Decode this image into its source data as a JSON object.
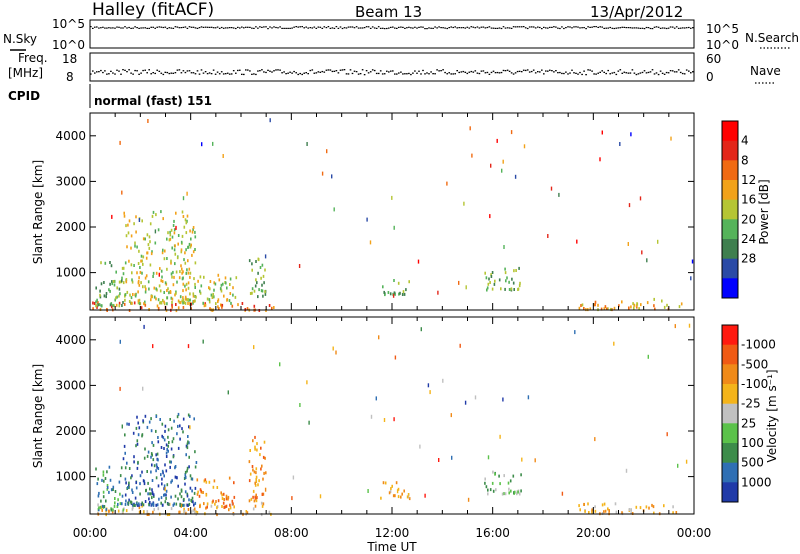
{
  "header": {
    "station": "Halley (fitACF)",
    "beam": "Beam 13",
    "date": "13/Apr/2012"
  },
  "panels": {
    "nsky": {
      "label": "N.Sky",
      "ticks": [
        "10^5",
        "10^0"
      ]
    },
    "nsearch": {
      "label": "N.Search",
      "ticks": [
        "10^5",
        "10^0"
      ]
    },
    "freq": {
      "label_line1": "Freq.",
      "label_line2": "[MHz]",
      "ticks": [
        "18",
        "8"
      ]
    },
    "nave": {
      "label": "Nave",
      "ticks": [
        "60",
        "0"
      ]
    },
    "cpid": {
      "label": "CPID",
      "value": "normal (fast) 151"
    }
  },
  "chart_data": [
    {
      "type": "heatmap",
      "name": "power",
      "ylabel": "Slant Range [km]",
      "xlabel": "",
      "ylim": [
        180,
        4500
      ],
      "yticks": [
        1000,
        2000,
        3000,
        4000
      ],
      "xticks": [
        "00:00",
        "04:00",
        "08:00",
        "12:00",
        "16:00",
        "20:00",
        "00:00"
      ],
      "xlim_hours": [
        0,
        24
      ],
      "colorbar": {
        "label": "Power [dB]",
        "tick_labels": [
          "4",
          "8",
          "12",
          "16",
          "20",
          "24",
          "28"
        ],
        "colors": [
          "#0000ff",
          "#2a4aa6",
          "#3f7f4f",
          "#55b35a",
          "#b5c534",
          "#f2a21a",
          "#f06a12",
          "#e3261a",
          "#ff0000"
        ]
      },
      "echo_regions": [
        {
          "t0": 0.0,
          "t1": 7.3,
          "r0": 200,
          "r1": 380,
          "level": 6
        },
        {
          "t0": 0.2,
          "t1": 1.3,
          "r0": 300,
          "r1": 1300,
          "level": 3
        },
        {
          "t0": 1.3,
          "t1": 4.2,
          "r0": 350,
          "r1": 2400,
          "level": 4
        },
        {
          "t0": 4.2,
          "t1": 5.8,
          "r0": 350,
          "r1": 1000,
          "level": 4
        },
        {
          "t0": 6.3,
          "t1": 7.0,
          "r0": 500,
          "r1": 1400,
          "level": 3
        },
        {
          "t0": 11.5,
          "t1": 12.7,
          "r0": 550,
          "r1": 900,
          "level": 3
        },
        {
          "t0": 15.6,
          "t1": 17.1,
          "r0": 650,
          "r1": 1150,
          "level": 3
        },
        {
          "t0": 19.4,
          "t1": 23.5,
          "r0": 220,
          "r1": 450,
          "level": 5
        }
      ]
    },
    {
      "type": "heatmap",
      "name": "velocity",
      "ylabel": "Slant Range [km]",
      "xlabel": "Time UT",
      "ylim": [
        180,
        4500
      ],
      "yticks": [
        1000,
        2000,
        3000,
        4000
      ],
      "xticks": [
        "00:00",
        "04:00",
        "08:00",
        "12:00",
        "16:00",
        "20:00",
        "00:00"
      ],
      "xlim_hours": [
        0,
        24
      ],
      "colorbar": {
        "label": "Velocity [m s⁻¹]",
        "tick_labels": [
          "1000",
          "500",
          "100",
          "25",
          "-25",
          "-100",
          "-500",
          "-1000"
        ],
        "colors": [
          "#203aa8",
          "#2f6fb3",
          "#3c8c4a",
          "#5bc24a",
          "#c0c0c0",
          "#f4b41a",
          "#f08a18",
          "#f05a14",
          "#ff1a10"
        ]
      },
      "echo_regions": [
        {
          "t0": 0.0,
          "t1": 7.3,
          "r0": 200,
          "r1": 450,
          "level": 5
        },
        {
          "t0": 0.2,
          "t1": 1.3,
          "r0": 300,
          "r1": 1300,
          "level": 2
        },
        {
          "t0": 1.3,
          "t1": 4.2,
          "r0": 400,
          "r1": 2400,
          "level": 1
        },
        {
          "t0": 4.2,
          "t1": 5.8,
          "r0": 350,
          "r1": 1000,
          "level": 6
        },
        {
          "t0": 6.3,
          "t1": 7.0,
          "r0": 500,
          "r1": 1900,
          "level": 6
        },
        {
          "t0": 11.5,
          "t1": 12.7,
          "r0": 550,
          "r1": 900,
          "level": 5
        },
        {
          "t0": 15.6,
          "t1": 17.1,
          "r0": 650,
          "r1": 1150,
          "level": 3
        },
        {
          "t0": 19.4,
          "t1": 23.5,
          "r0": 220,
          "r1": 450,
          "level": 5
        }
      ]
    }
  ]
}
